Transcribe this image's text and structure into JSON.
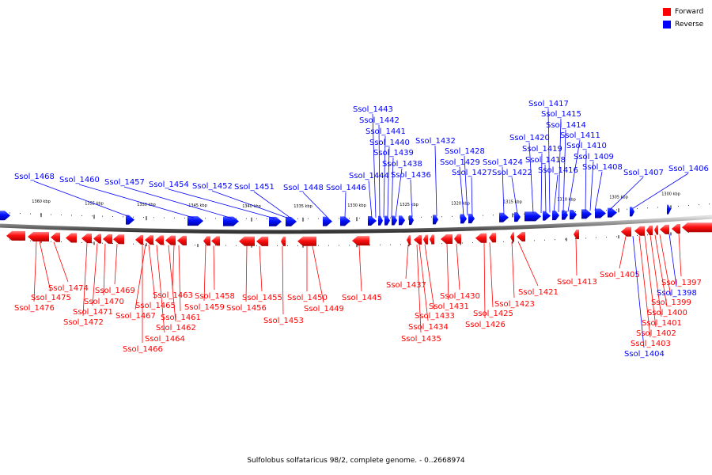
{
  "legend": {
    "forward_label": "Forward",
    "reverse_label": "Reverse",
    "forward_color": "#ff0000",
    "reverse_color": "#0000ff"
  },
  "caption": "Sulfolobus solfataricus 98/2, complete genome. - 0..2668974",
  "ticks": [
    "1360 kbp",
    "1355 kbp",
    "1350 kbp",
    "1345 kbp",
    "1340 kbp",
    "1335 kbp",
    "1330 kbp",
    "1325 kbp",
    "1320 kbp",
    "1315 kbp",
    "1310 kbp",
    "1305 kbp",
    "1300 kbp"
  ],
  "reverse_genes": [
    {
      "label": "Ssol_1468",
      "gx": 163
    },
    {
      "label": "Ssol_1460",
      "gx": 245
    },
    {
      "label": "Ssol_1457",
      "gx": 293
    },
    {
      "label": "Ssol_1454",
      "gx": 347
    },
    {
      "label": "Ssol_1452",
      "gx": 365
    },
    {
      "label": "Ssol_1451",
      "gx": 368
    },
    {
      "label": "Ssol_1448",
      "gx": 415
    },
    {
      "label": "Ssol_1446",
      "gx": 436
    },
    {
      "label": "Ssol_1444",
      "gx": 470
    },
    {
      "label": "Ssol_1443",
      "gx": 475
    },
    {
      "label": "Ssol_1442",
      "gx": 480
    },
    {
      "label": "Ssol_1441",
      "gx": 485
    },
    {
      "label": "Ssol_1440",
      "gx": 490
    },
    {
      "label": "Ssol_1439",
      "gx": 495
    },
    {
      "label": "Ssol_1438",
      "gx": 500
    },
    {
      "label": "Ssol_1436",
      "gx": 521
    },
    {
      "label": "Ssol_1432",
      "gx": 552
    },
    {
      "label": "Ssol_1429",
      "gx": 586
    },
    {
      "label": "Ssol_1428",
      "gx": 591
    },
    {
      "label": "Ssol_1427",
      "gx": 597
    },
    {
      "label": "Ssol_1424",
      "gx": 637
    },
    {
      "label": "Ssol_1422",
      "gx": 654
    },
    {
      "label": "Ssol_1420",
      "gx": 674
    },
    {
      "label": "Ssol_1419",
      "gx": 684
    },
    {
      "label": "Ssol_1418",
      "gx": 690
    },
    {
      "label": "Ssol_1417",
      "gx": 695
    },
    {
      "label": "Ssol_1416",
      "gx": 700
    },
    {
      "label": "Ssol_1415",
      "gx": 706
    },
    {
      "label": "Ssol_1414",
      "gx": 712
    },
    {
      "label": "Ssol_1411",
      "gx": 718
    },
    {
      "label": "Ssol_1410",
      "gx": 740
    },
    {
      "label": "Ssol_1409",
      "gx": 746
    },
    {
      "label": "Ssol_1408",
      "gx": 752
    },
    {
      "label": "Ssol_1407",
      "gx": 771
    },
    {
      "label": "Ssol_1406",
      "gx": 800
    }
  ],
  "forward_genes": [
    {
      "label": "Ssol_1474",
      "gx": 68
    },
    {
      "label": "Ssol_1475",
      "gx": 50
    },
    {
      "label": "Ssol_1476",
      "gx": 46
    },
    {
      "label": "Ssol_1469",
      "gx": 148
    },
    {
      "label": "Ssol_1470",
      "gx": 133
    },
    {
      "label": "Ssol_1471",
      "gx": 123
    },
    {
      "label": "Ssol_1472",
      "gx": 110
    },
    {
      "label": "Ssol_1465",
      "gx": 188
    },
    {
      "label": "Ssol_1467",
      "gx": 184
    },
    {
      "label": "Ssol_1466",
      "gx": 180
    },
    {
      "label": "Ssol_1463",
      "gx": 220
    },
    {
      "label": "Ssol_1461",
      "gx": 226
    },
    {
      "label": "Ssol_1462",
      "gx": 213
    },
    {
      "label": "Ssol_1464",
      "gx": 198
    },
    {
      "label": "Ssol_1458",
      "gx": 270
    },
    {
      "label": "Ssol_1459",
      "gx": 260
    },
    {
      "label": "Ssol_1455",
      "gx": 328
    },
    {
      "label": "Ssol_1456",
      "gx": 312
    },
    {
      "label": "Ssol_1453",
      "gx": 357
    },
    {
      "label": "Ssol_1450",
      "gx": 388
    },
    {
      "label": "Ssol_1449",
      "gx": 395
    },
    {
      "label": "Ssol_1445",
      "gx": 454
    },
    {
      "label": "Ssol_1437",
      "gx": 516
    },
    {
      "label": "Ssol_1433",
      "gx": 537
    },
    {
      "label": "Ssol_1434",
      "gx": 530
    },
    {
      "label": "Ssol_1435",
      "gx": 527
    },
    {
      "label": "Ssol_1431",
      "gx": 565
    },
    {
      "label": "Ssol_1430",
      "gx": 577
    },
    {
      "label": "Ssol_1425",
      "gx": 619
    },
    {
      "label": "Ssol_1426",
      "gx": 612
    },
    {
      "label": "Ssol_1423",
      "gx": 647
    },
    {
      "label": "Ssol_1421",
      "gx": 655
    },
    {
      "label": "Ssol_1413",
      "gx": 728
    },
    {
      "label": "Ssol_1405",
      "gx": 791
    },
    {
      "label": "Ssol_1404",
      "gx": 800
    },
    {
      "label": "Ssol_1403",
      "gx": 808
    },
    {
      "label": "Ssol_1402",
      "gx": 815
    },
    {
      "label": "Ssol_1401",
      "gx": 822
    },
    {
      "label": "Ssol_1400",
      "gx": 828
    },
    {
      "label": "Ssol_1399",
      "gx": 834
    },
    {
      "label": "Ssol_1398",
      "gx": 846
    },
    {
      "label": "Ssol_1397",
      "gx": 858
    }
  ]
}
